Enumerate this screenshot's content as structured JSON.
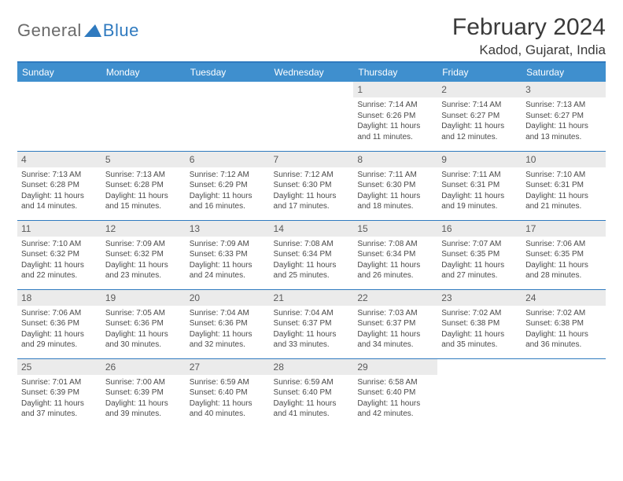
{
  "brand": {
    "part1": "General",
    "part2": "Blue",
    "shape_color": "#2f7abf"
  },
  "title": "February 2024",
  "location": "Kadod, Gujarat, India",
  "colors": {
    "header_bg": "#3f8fce",
    "header_text": "#ffffff",
    "daynum_bg": "#ebebeb",
    "border": "#2f7abf",
    "body_text": "#4a4a4a"
  },
  "weekdays": [
    "Sunday",
    "Monday",
    "Tuesday",
    "Wednesday",
    "Thursday",
    "Friday",
    "Saturday"
  ],
  "weeks": [
    [
      {
        "empty": true
      },
      {
        "empty": true
      },
      {
        "empty": true
      },
      {
        "empty": true
      },
      {
        "n": "1",
        "sr": "Sunrise: 7:14 AM",
        "ss": "Sunset: 6:26 PM",
        "dl": "Daylight: 11 hours and 11 minutes."
      },
      {
        "n": "2",
        "sr": "Sunrise: 7:14 AM",
        "ss": "Sunset: 6:27 PM",
        "dl": "Daylight: 11 hours and 12 minutes."
      },
      {
        "n": "3",
        "sr": "Sunrise: 7:13 AM",
        "ss": "Sunset: 6:27 PM",
        "dl": "Daylight: 11 hours and 13 minutes."
      }
    ],
    [
      {
        "n": "4",
        "sr": "Sunrise: 7:13 AM",
        "ss": "Sunset: 6:28 PM",
        "dl": "Daylight: 11 hours and 14 minutes."
      },
      {
        "n": "5",
        "sr": "Sunrise: 7:13 AM",
        "ss": "Sunset: 6:28 PM",
        "dl": "Daylight: 11 hours and 15 minutes."
      },
      {
        "n": "6",
        "sr": "Sunrise: 7:12 AM",
        "ss": "Sunset: 6:29 PM",
        "dl": "Daylight: 11 hours and 16 minutes."
      },
      {
        "n": "7",
        "sr": "Sunrise: 7:12 AM",
        "ss": "Sunset: 6:30 PM",
        "dl": "Daylight: 11 hours and 17 minutes."
      },
      {
        "n": "8",
        "sr": "Sunrise: 7:11 AM",
        "ss": "Sunset: 6:30 PM",
        "dl": "Daylight: 11 hours and 18 minutes."
      },
      {
        "n": "9",
        "sr": "Sunrise: 7:11 AM",
        "ss": "Sunset: 6:31 PM",
        "dl": "Daylight: 11 hours and 19 minutes."
      },
      {
        "n": "10",
        "sr": "Sunrise: 7:10 AM",
        "ss": "Sunset: 6:31 PM",
        "dl": "Daylight: 11 hours and 21 minutes."
      }
    ],
    [
      {
        "n": "11",
        "sr": "Sunrise: 7:10 AM",
        "ss": "Sunset: 6:32 PM",
        "dl": "Daylight: 11 hours and 22 minutes."
      },
      {
        "n": "12",
        "sr": "Sunrise: 7:09 AM",
        "ss": "Sunset: 6:32 PM",
        "dl": "Daylight: 11 hours and 23 minutes."
      },
      {
        "n": "13",
        "sr": "Sunrise: 7:09 AM",
        "ss": "Sunset: 6:33 PM",
        "dl": "Daylight: 11 hours and 24 minutes."
      },
      {
        "n": "14",
        "sr": "Sunrise: 7:08 AM",
        "ss": "Sunset: 6:34 PM",
        "dl": "Daylight: 11 hours and 25 minutes."
      },
      {
        "n": "15",
        "sr": "Sunrise: 7:08 AM",
        "ss": "Sunset: 6:34 PM",
        "dl": "Daylight: 11 hours and 26 minutes."
      },
      {
        "n": "16",
        "sr": "Sunrise: 7:07 AM",
        "ss": "Sunset: 6:35 PM",
        "dl": "Daylight: 11 hours and 27 minutes."
      },
      {
        "n": "17",
        "sr": "Sunrise: 7:06 AM",
        "ss": "Sunset: 6:35 PM",
        "dl": "Daylight: 11 hours and 28 minutes."
      }
    ],
    [
      {
        "n": "18",
        "sr": "Sunrise: 7:06 AM",
        "ss": "Sunset: 6:36 PM",
        "dl": "Daylight: 11 hours and 29 minutes."
      },
      {
        "n": "19",
        "sr": "Sunrise: 7:05 AM",
        "ss": "Sunset: 6:36 PM",
        "dl": "Daylight: 11 hours and 30 minutes."
      },
      {
        "n": "20",
        "sr": "Sunrise: 7:04 AM",
        "ss": "Sunset: 6:36 PM",
        "dl": "Daylight: 11 hours and 32 minutes."
      },
      {
        "n": "21",
        "sr": "Sunrise: 7:04 AM",
        "ss": "Sunset: 6:37 PM",
        "dl": "Daylight: 11 hours and 33 minutes."
      },
      {
        "n": "22",
        "sr": "Sunrise: 7:03 AM",
        "ss": "Sunset: 6:37 PM",
        "dl": "Daylight: 11 hours and 34 minutes."
      },
      {
        "n": "23",
        "sr": "Sunrise: 7:02 AM",
        "ss": "Sunset: 6:38 PM",
        "dl": "Daylight: 11 hours and 35 minutes."
      },
      {
        "n": "24",
        "sr": "Sunrise: 7:02 AM",
        "ss": "Sunset: 6:38 PM",
        "dl": "Daylight: 11 hours and 36 minutes."
      }
    ],
    [
      {
        "n": "25",
        "sr": "Sunrise: 7:01 AM",
        "ss": "Sunset: 6:39 PM",
        "dl": "Daylight: 11 hours and 37 minutes."
      },
      {
        "n": "26",
        "sr": "Sunrise: 7:00 AM",
        "ss": "Sunset: 6:39 PM",
        "dl": "Daylight: 11 hours and 39 minutes."
      },
      {
        "n": "27",
        "sr": "Sunrise: 6:59 AM",
        "ss": "Sunset: 6:40 PM",
        "dl": "Daylight: 11 hours and 40 minutes."
      },
      {
        "n": "28",
        "sr": "Sunrise: 6:59 AM",
        "ss": "Sunset: 6:40 PM",
        "dl": "Daylight: 11 hours and 41 minutes."
      },
      {
        "n": "29",
        "sr": "Sunrise: 6:58 AM",
        "ss": "Sunset: 6:40 PM",
        "dl": "Daylight: 11 hours and 42 minutes."
      },
      {
        "empty": true
      },
      {
        "empty": true
      }
    ]
  ]
}
